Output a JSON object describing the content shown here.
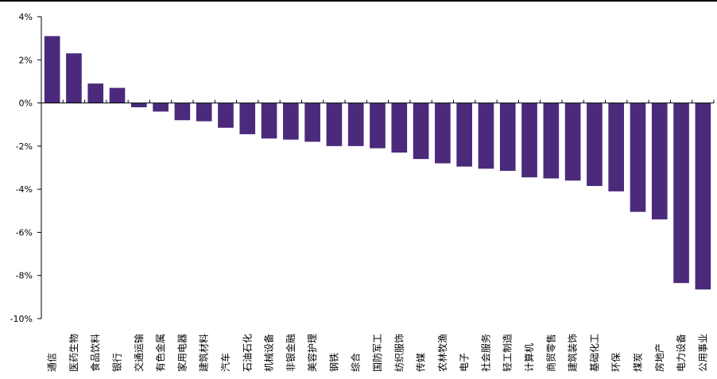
{
  "chart_data": {
    "type": "bar",
    "categories": [
      "通信",
      "医药生物",
      "食品饮料",
      "银行",
      "交通运输",
      "有色金属",
      "家用电器",
      "建筑材料",
      "汽车",
      "石油石化",
      "机械设备",
      "非银金融",
      "美容护理",
      "钢铁",
      "综合",
      "国防军工",
      "纺织服饰",
      "传媒",
      "农林牧渔",
      "电子",
      "社会服务",
      "轻工制造",
      "计算机",
      "商贸零售",
      "建筑装饰",
      "基础化工",
      "环保",
      "煤炭",
      "房地产",
      "电力设备",
      "公用事业"
    ],
    "values": [
      3.1,
      2.3,
      0.9,
      0.7,
      -0.2,
      -0.4,
      -0.8,
      -0.85,
      -1.15,
      -1.45,
      -1.65,
      -1.7,
      -1.8,
      -2.0,
      -2.0,
      -2.1,
      -2.3,
      -2.6,
      -2.8,
      -2.95,
      -3.05,
      -3.15,
      -3.45,
      -3.5,
      -3.6,
      -3.85,
      -4.1,
      -5.05,
      -5.4,
      -8.35,
      -8.65
    ],
    "yticks": [
      "4%",
      "2%",
      "0%",
      "-2%",
      "-4%",
      "-6%",
      "-8%",
      "-10%"
    ],
    "ylim": [
      -10,
      4
    ],
    "bar_color": "#4b2a7b",
    "grid": false,
    "title": "",
    "xlabel": "",
    "ylabel": ""
  }
}
